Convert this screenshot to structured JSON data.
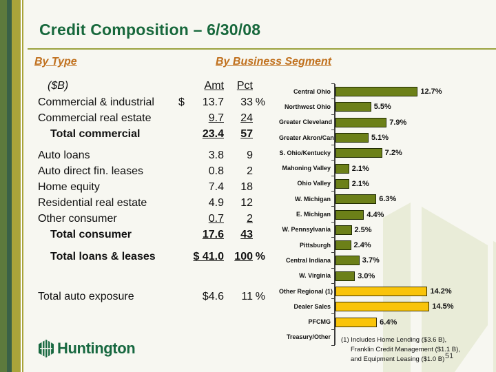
{
  "slide": {
    "title": "Credit Composition – 6/30/08",
    "page_number": "51",
    "logo_text": "Huntington"
  },
  "left_section": {
    "heading": "By Type",
    "table": {
      "unit_label": "($B)",
      "col_amt": "Amt",
      "col_pct": "Pct",
      "rows": [
        {
          "label": "Commercial & industrial",
          "dollar": "$",
          "amt": "13.7",
          "pct": "33",
          "pctSuffix": "%"
        },
        {
          "label": "Commercial real estate",
          "amt": "9.7",
          "pct": "24",
          "underline": true
        },
        {
          "label": "Total commercial",
          "amt": "23.4",
          "pct": "57",
          "bold": true,
          "underline": true,
          "indent": true
        },
        {
          "label": "Auto loans",
          "amt": "3.8",
          "pct": "9",
          "gap": 8
        },
        {
          "label": "Auto direct fin. leases",
          "amt": "0.8",
          "pct": "2"
        },
        {
          "label": "Home equity",
          "amt": "7.4",
          "pct": "18"
        },
        {
          "label": "Residential real estate",
          "amt": "4.9",
          "pct": "12"
        },
        {
          "label": "Other consumer",
          "amt": "0.7",
          "pct": "2",
          "underline": true
        },
        {
          "label": "Total consumer",
          "amt": "17.6",
          "pct": "43",
          "bold": true,
          "underline": true,
          "indent": true
        },
        {
          "label": "Total loans & leases",
          "amt": "$ 41.0",
          "pct": "100",
          "pctSuffix": "%",
          "bold": true,
          "underline": true,
          "indent": true,
          "gap": 9
        },
        {
          "label": "Total auto exposure",
          "amt": "$4.6",
          "pct": "11",
          "pctSuffix": "%",
          "gap": 35
        }
      ]
    }
  },
  "right_section": {
    "heading": "By Business Segment",
    "footnote": {
      "line1": "(1) Includes Home Lending ($3.6 B),",
      "line2": "Franklin Credit Management ($1.1 B),",
      "line3": "and Equipment Leasing ($1.0 B)"
    }
  },
  "chart_data": {
    "type": "bar",
    "orientation": "horizontal",
    "title": "By Business Segment",
    "categories": [
      "Central Ohio",
      "Northwest Ohio",
      "Greater Cleveland",
      "Greater Akron/Canton",
      "S. Ohio/Kentucky",
      "Mahoning Valley",
      "Ohio Valley",
      "W. Michigan",
      "E. Michigan",
      "W. Pennsylvania",
      "Pittsburgh",
      "Central Indiana",
      "W. Virginia",
      "Other Regional (1)",
      "Dealer Sales",
      "PFCMG",
      "Treasury/Other"
    ],
    "values": [
      12.7,
      5.5,
      7.9,
      5.1,
      7.2,
      2.1,
      2.1,
      6.3,
      4.4,
      2.5,
      2.4,
      3.7,
      3.0,
      14.2,
      14.5,
      6.4,
      null
    ],
    "value_labels": [
      "12.7%",
      "5.5%",
      "7.9%",
      "5.1%",
      "7.2%",
      "2.1%",
      "2.1%",
      "6.3%",
      "4.4%",
      "2.5%",
      "2.4%",
      "3.7%",
      "3.0%",
      "14.2%",
      "14.5%",
      "6.4%",
      ""
    ],
    "bar_color_keys": [
      "green",
      "green",
      "green",
      "green",
      "green",
      "green",
      "green",
      "green",
      "green",
      "green",
      "green",
      "green",
      "green",
      "gold",
      "gold",
      "gold",
      null
    ],
    "colors": {
      "green": "#6c8018",
      "gold": "#f9c40a"
    },
    "xlim": [
      0,
      16
    ],
    "grid": false,
    "legend": false,
    "value_labels_shown": true
  }
}
